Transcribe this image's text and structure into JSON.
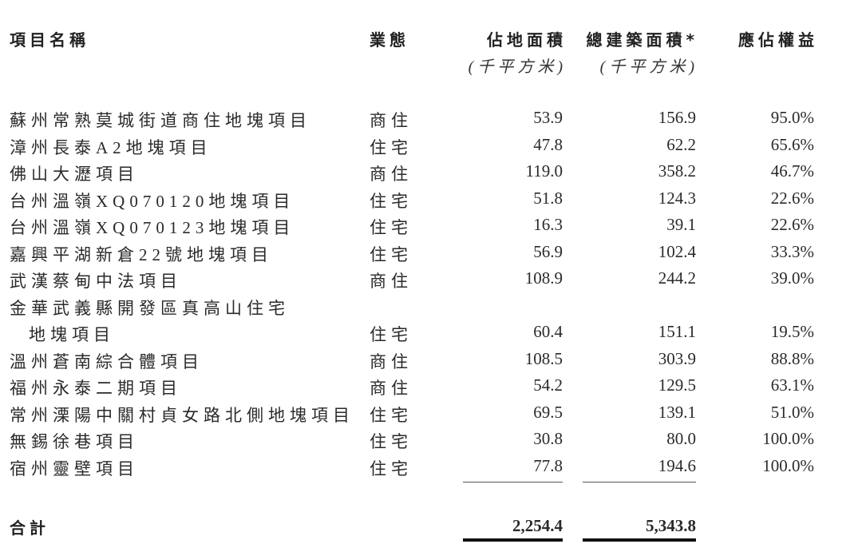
{
  "header": {
    "name": "項目名稱",
    "type": "業態",
    "site_area": "佔地面積",
    "gfa": "總建築面積*",
    "interest": "應佔權益",
    "site_area_unit": "(千平方米)",
    "gfa_unit": "(千平方米)"
  },
  "rows": [
    {
      "name": "蘇州常熟莫城街道商住地塊項目",
      "type": "商住",
      "site_area": "53.9",
      "gfa": "156.9",
      "interest": "95.0%"
    },
    {
      "name": "漳州長泰A2地塊項目",
      "type": "住宅",
      "site_area": "47.8",
      "gfa": "62.2",
      "interest": "65.6%"
    },
    {
      "name": "佛山大瀝項目",
      "type": "商住",
      "site_area": "119.0",
      "gfa": "358.2",
      "interest": "46.7%"
    },
    {
      "name": "台州溫嶺XQ070120地塊項目",
      "type": "住宅",
      "site_area": "51.8",
      "gfa": "124.3",
      "interest": "22.6%"
    },
    {
      "name": "台州溫嶺XQ070123地塊項目",
      "type": "住宅",
      "site_area": "16.3",
      "gfa": "39.1",
      "interest": "22.6%"
    },
    {
      "name": "嘉興平湖新倉22號地塊項目",
      "type": "住宅",
      "site_area": "56.9",
      "gfa": "102.4",
      "interest": "33.3%"
    },
    {
      "name": "武漢蔡甸中法項目",
      "type": "商住",
      "site_area": "108.9",
      "gfa": "244.2",
      "interest": "39.0%"
    },
    {
      "name": "金華武義縣開發區真高山住宅",
      "name2": "地塊項目",
      "type": "住宅",
      "site_area": "60.4",
      "gfa": "151.1",
      "interest": "19.5%"
    },
    {
      "name": "溫州蒼南綜合體項目",
      "type": "商住",
      "site_area": "108.5",
      "gfa": "303.9",
      "interest": "88.8%"
    },
    {
      "name": "福州永泰二期項目",
      "type": "商住",
      "site_area": "54.2",
      "gfa": "129.5",
      "interest": "63.1%"
    },
    {
      "name": "常州溧陽中關村貞女路北側地塊項目",
      "type": "住宅",
      "site_area": "69.5",
      "gfa": "139.1",
      "interest": "51.0%"
    },
    {
      "name": "無錫徐巷項目",
      "type": "住宅",
      "site_area": "30.8",
      "gfa": "80.0",
      "interest": "100.0%"
    },
    {
      "name": "宿州靈壁項目",
      "type": "住宅",
      "site_area": "77.8",
      "gfa": "194.6",
      "interest": "100.0%"
    }
  ],
  "total": {
    "label": "合計",
    "site_area": "2,254.4",
    "gfa": "5,343.8"
  }
}
